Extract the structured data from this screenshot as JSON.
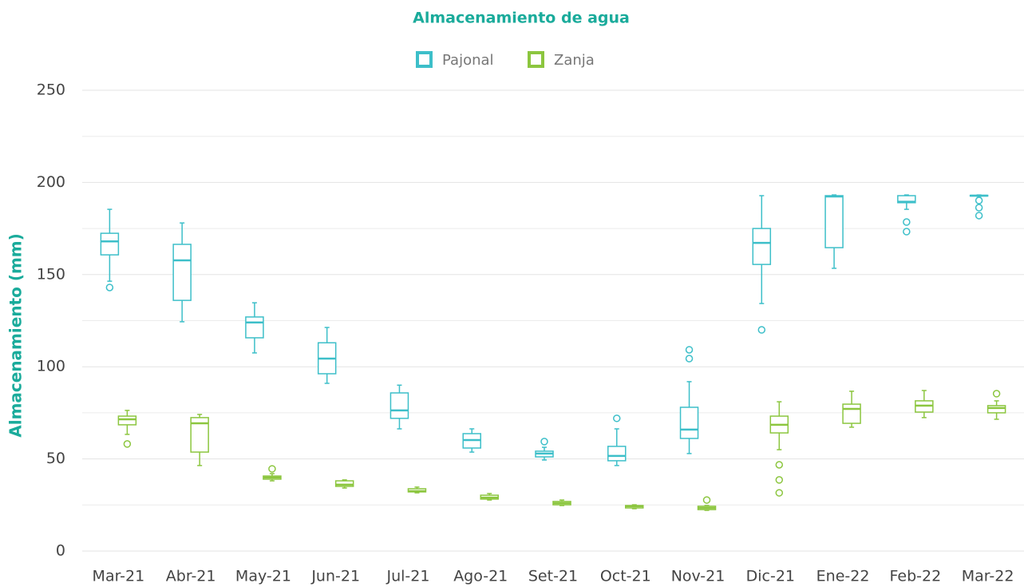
{
  "chart_data": {
    "type": "boxplot",
    "title": "Almacenamiento de agua",
    "y_label": "Almacenamiento (mm)",
    "categories": [
      "Mar-21",
      "Abr-21",
      "May-21",
      "Jun-21",
      "Jul-21",
      "Ago-21",
      "Set-21",
      "Oct-21",
      "Nov-21",
      "Dic-21",
      "Ene-22",
      "Feb-22",
      "Mar-22"
    ],
    "ylim": [
      0,
      250
    ],
    "yticks": [
      0,
      50,
      100,
      150,
      200,
      250
    ],
    "minor_grid": [
      25,
      75,
      125,
      175,
      225
    ],
    "grid": true,
    "legend": "top",
    "series": [
      {
        "name": "Pajonal",
        "color": "#3dbfc9",
        "min": [
          146.4,
          124.4,
          107.5,
          91,
          66.3,
          53.7,
          49.4,
          46.4,
          52.9,
          134.3,
          153.4,
          185.4,
          192.4
        ],
        "q1": [
          160.7,
          136,
          115.7,
          96.2,
          72,
          55.9,
          51.1,
          49,
          61.1,
          155.5,
          164.6,
          189,
          192.6
        ],
        "median": [
          168,
          157.7,
          124,
          104.4,
          76.3,
          60.2,
          52.9,
          51.6,
          65.9,
          167.2,
          192.4,
          189.5,
          192.8
        ],
        "q3": [
          172.4,
          166.4,
          127,
          113,
          85.8,
          63.7,
          54.2,
          56.8,
          78,
          175,
          192.8,
          192.8,
          193
        ],
        "max": [
          185.4,
          178,
          134.7,
          121.3,
          90,
          66.3,
          56.3,
          66.3,
          91.9,
          192.8,
          193.2,
          193.2,
          193.2
        ],
        "outliers": [
          [
            143
          ],
          [],
          [],
          [],
          [],
          [],
          [
            59.4
          ],
          [
            72
          ],
          [
            109.2,
            104.4
          ],
          [
            120
          ],
          [],
          [
            178.5,
            173.3
          ],
          [
            190.2,
            186.3,
            182
          ]
        ]
      },
      {
        "name": "Zanja",
        "color": "#8cc63f",
        "min": [
          63.3,
          46.4,
          38.1,
          34.2,
          31.6,
          27.7,
          24.7,
          23,
          22.1,
          55,
          67.2,
          72.4,
          71.5
        ],
        "q1": [
          68.5,
          53.7,
          39,
          35.1,
          32.1,
          28.2,
          25.1,
          23.4,
          22.5,
          64.1,
          69.3,
          75.4,
          75
        ],
        "median": [
          71.5,
          69.3,
          39.9,
          36,
          32.5,
          29,
          26,
          24.3,
          23.4,
          68.5,
          77.1,
          78.9,
          77.6
        ],
        "q3": [
          73.2,
          72.4,
          40.7,
          38.1,
          33.8,
          30.3,
          26.9,
          24.7,
          24.3,
          73.2,
          79.7,
          81.5,
          78.9
        ],
        "max": [
          76.3,
          74.1,
          42,
          38.6,
          34.7,
          31.2,
          27.7,
          25.1,
          24.7,
          81,
          86.7,
          87.1,
          81.5
        ],
        "outliers": [
          [
            58.1
          ],
          [],
          [
            44.6
          ],
          [],
          [],
          [],
          [],
          [],
          [
            27.7
          ],
          [
            46.8,
            38.6,
            31.6
          ],
          [],
          [],
          [
            85.4
          ]
        ]
      }
    ]
  }
}
